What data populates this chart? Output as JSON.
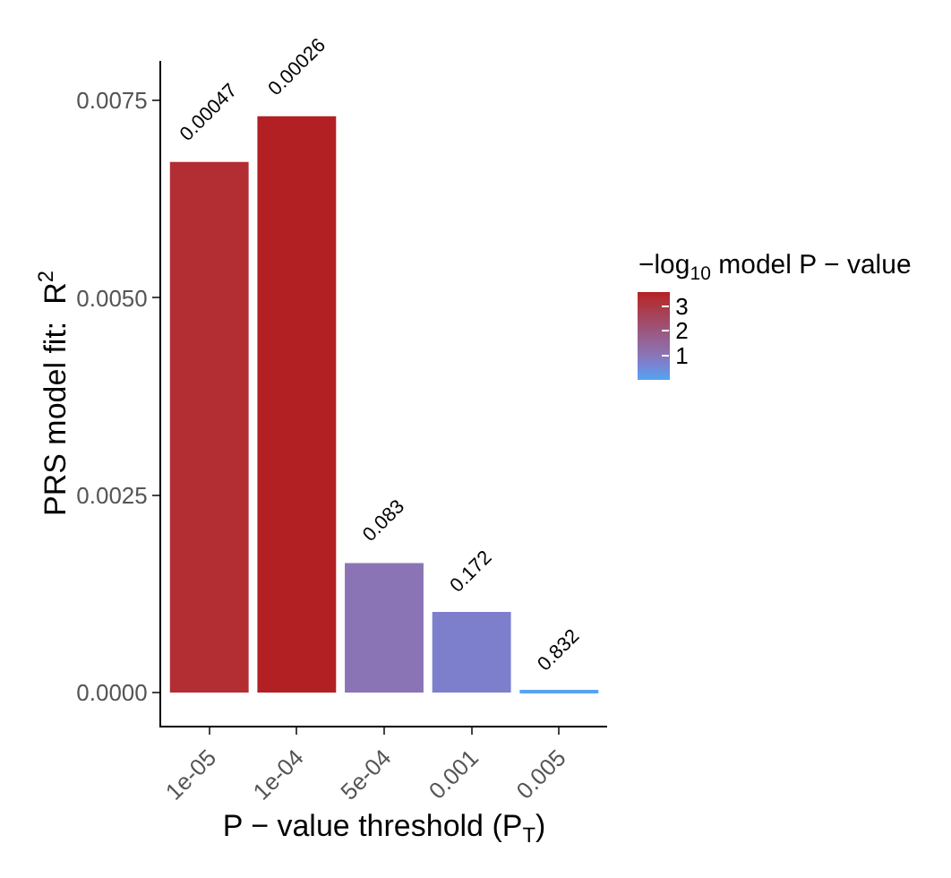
{
  "chart_data": {
    "type": "bar",
    "xlabel": "P − value threshold (P$_{T}$)",
    "ylabel": "PRS model fit:  R$^{2}$",
    "clabel": "−log$_{10}$ model P − value",
    "categories": [
      "1e-05",
      "1e-04",
      "5e-04",
      "0.001",
      "0.005"
    ],
    "values": [
      0.00672,
      0.0073,
      0.00164,
      0.00102,
      2e-05
    ],
    "annotations": [
      {
        "text": "0.00047",
        "x": "1e-05",
        "y": 0.00672
      },
      {
        "text": "0.00026",
        "x": "1e-04",
        "y": 0.0073
      },
      {
        "text": "0.083",
        "x": "5e-04",
        "y": 0.00164
      },
      {
        "text": "0.172",
        "x": "0.001",
        "y": 0.00102
      },
      {
        "text": "0.832",
        "x": "0.005",
        "y": 2e-05
      }
    ],
    "colors": [
      "#b22e33",
      "#b22024",
      "#8b74b5",
      "#7d7fcd",
      "#56a3f0"
    ],
    "cvalues": [
      3.33,
      3.59,
      1.08,
      0.76,
      0.08
    ],
    "clim": [
      0.05,
      3.6
    ],
    "cticks": [
      1,
      2,
      3
    ],
    "ylim": [
      -0.00042,
      0.008
    ],
    "yticks": [
      {
        "value": 0,
        "label": "0.0000"
      },
      {
        "value": 0.0025,
        "label": "0.0025"
      },
      {
        "value": 0.005,
        "label": "0.0050"
      },
      {
        "value": 0.0075,
        "label": "0.0075"
      }
    ],
    "grid": false
  }
}
